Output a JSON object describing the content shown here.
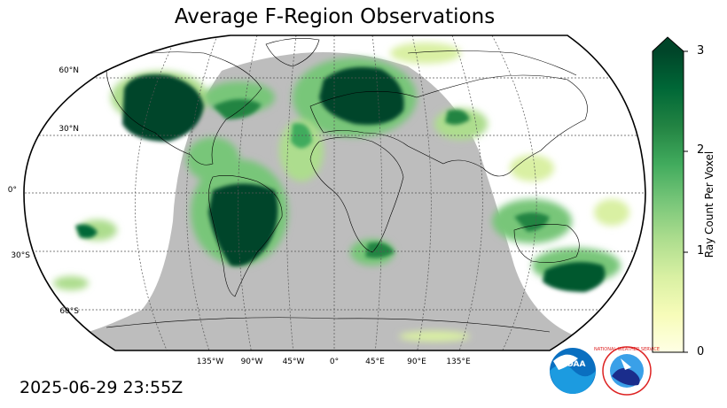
{
  "title": "Average F-Region Observations",
  "timestamp": "2025-06-29 23:55Z",
  "latitude_labels": [
    "60°N",
    "30°N",
    "0°",
    "30°S",
    "60°S"
  ],
  "longitude_labels": [
    "135°W",
    "90°W",
    "45°W",
    "0°",
    "45°E",
    "90°E",
    "135°E"
  ],
  "colorbar": {
    "label": "Ray Count Per Voxel",
    "ticks": [
      "0",
      "1",
      "2",
      "3"
    ],
    "min": 0,
    "max": 3,
    "extend": "max",
    "colormap": "YlGn",
    "colors": [
      "#ffffe5",
      "#f7fcb9",
      "#d9f0a3",
      "#addd8e",
      "#78c679",
      "#41ab5d",
      "#238443",
      "#006837",
      "#004529"
    ]
  },
  "night_shade_color": "#bdbdbd",
  "logos": [
    "NOAA",
    "National Weather Service"
  ]
}
